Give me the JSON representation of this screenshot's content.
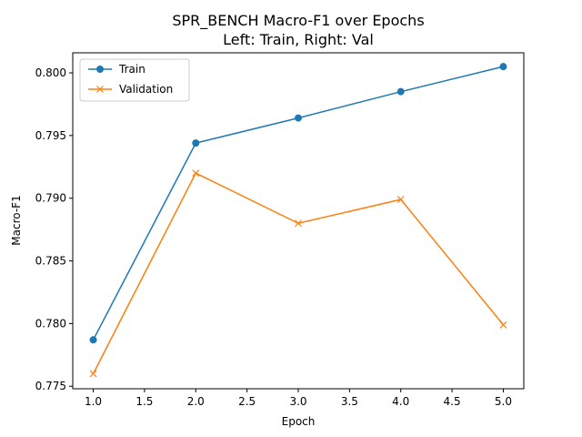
{
  "chart_data": {
    "type": "line",
    "title": "SPR_BENCH Macro-F1 over Epochs",
    "subtitle": "Left: Train, Right: Val",
    "xlabel": "Epoch",
    "ylabel": "Macro-F1",
    "xlim": [
      0.8,
      5.2
    ],
    "ylim": [
      0.7748,
      0.8016
    ],
    "xticks": [
      "1.0",
      "1.5",
      "2.0",
      "2.5",
      "3.0",
      "3.5",
      "4.0",
      "4.5",
      "5.0"
    ],
    "yticks": [
      "0.775",
      "0.780",
      "0.785",
      "0.790",
      "0.795",
      "0.800"
    ],
    "grid": false,
    "legend_position": "top-left",
    "x": [
      1,
      2,
      3,
      4,
      5
    ],
    "series": [
      {
        "name": "Train",
        "values": [
          0.7787,
          0.7944,
          0.7964,
          0.7985,
          0.8005
        ],
        "color": "#1f77b4",
        "marker": "circle"
      },
      {
        "name": "Validation",
        "values": [
          0.776,
          0.792,
          0.788,
          0.7899,
          0.7799
        ],
        "color": "#ff7f0e",
        "marker": "x"
      }
    ]
  }
}
